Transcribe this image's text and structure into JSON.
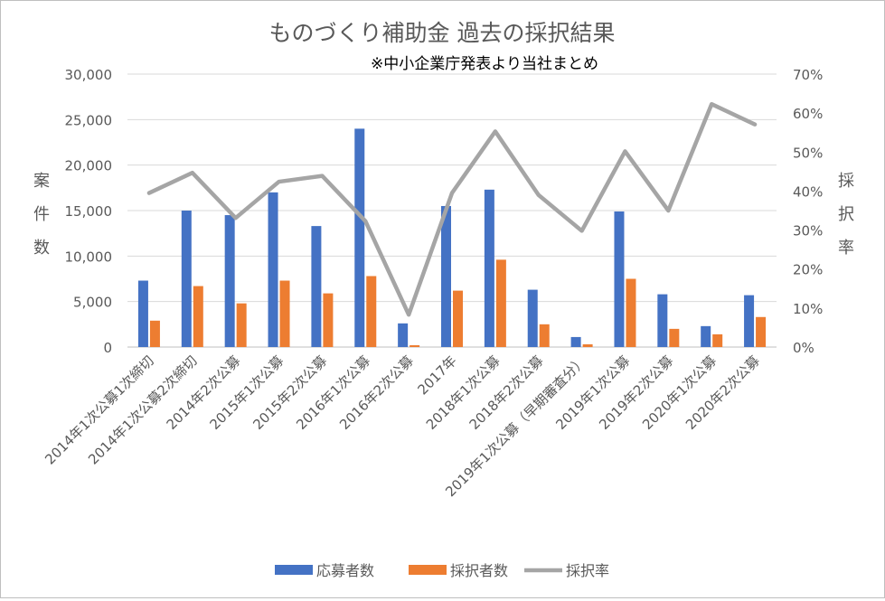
{
  "chart_data": {
    "type": "bar",
    "title": "ものづくり補助金 過去の採択結果",
    "subtitle": "※中小企業庁発表より当社まとめ",
    "ylabel_left": "案件数",
    "ylabel_right": "採択率",
    "ylim_left": [
      0,
      30000
    ],
    "ylim_right": [
      0,
      70
    ],
    "yticks_left": [
      "0",
      "5,000",
      "10,000",
      "15,000",
      "20,000",
      "25,000",
      "30,000"
    ],
    "yticks_right": [
      "0%",
      "10%",
      "20%",
      "30%",
      "40%",
      "50%",
      "60%",
      "70%"
    ],
    "grid": true,
    "legend_position": "bottom",
    "categories": [
      "2014年1次公募1次締切",
      "2014年1次公募2次締切",
      "2014年2次公募",
      "2015年1次公募",
      "2015年2次公募",
      "2016年1次公募",
      "2016年2次公募",
      "2017年",
      "2018年1次公募",
      "2018年2次公募",
      "2019年1次公募（早期審査分）",
      "2019年1次公募",
      "2019年2次公募",
      "2020年1次公募",
      "2020年2次公募"
    ],
    "series": [
      {
        "name": "応募者数",
        "type": "bar",
        "axis": "left",
        "color": "#4472c4",
        "values": [
          7300,
          15000,
          14500,
          17000,
          13300,
          24000,
          2600,
          15500,
          17300,
          6300,
          1100,
          14900,
          5800,
          2300,
          5700
        ]
      },
      {
        "name": "採択者数",
        "type": "bar",
        "axis": "left",
        "color": "#ed7d31",
        "values": [
          2900,
          6700,
          4800,
          7300,
          5900,
          7800,
          200,
          6200,
          9600,
          2500,
          300,
          7500,
          2000,
          1400,
          3300
        ]
      },
      {
        "name": "採択率",
        "type": "line",
        "axis": "right",
        "color": "#a5a5a5",
        "values": [
          39.5,
          44.7,
          33.1,
          42.4,
          43.9,
          32.3,
          8.3,
          39.5,
          55.3,
          39.0,
          29.8,
          50.2,
          35.0,
          62.3,
          57.1
        ]
      }
    ]
  }
}
